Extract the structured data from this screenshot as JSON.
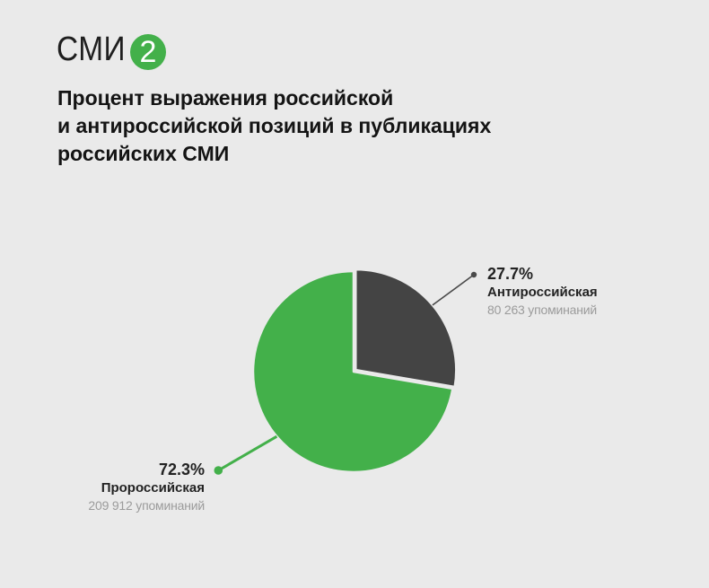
{
  "logo": {
    "text": "СМИ",
    "badge": "2",
    "badge_color": "#43b04a"
  },
  "title": {
    "lines": [
      "Процент выражения российской",
      "и антироссийской позиций в публикациях",
      "российских СМИ"
    ]
  },
  "chart_data": {
    "type": "pie",
    "title": "Процент выражения российской и антироссийской позиций в публикациях российских СМИ",
    "slices": [
      {
        "label": "Пророссийская",
        "percent": 72.3,
        "pct_label": "72.3%",
        "value": 209912,
        "mentions": "209 912 упоминаний",
        "color": "#43b04a"
      },
      {
        "label": "Антироссийская",
        "percent": 27.7,
        "pct_label": "27.7%",
        "value": 80263,
        "mentions": "80 263 упоминаний",
        "color": "#444444"
      }
    ],
    "start_angle_deg": 0,
    "legend_position": "callout-labels",
    "colors": {
      "background": "#eaeaea",
      "leader_line_dark": "#4a4a4a",
      "mentions_text": "#9b9b9b"
    }
  }
}
